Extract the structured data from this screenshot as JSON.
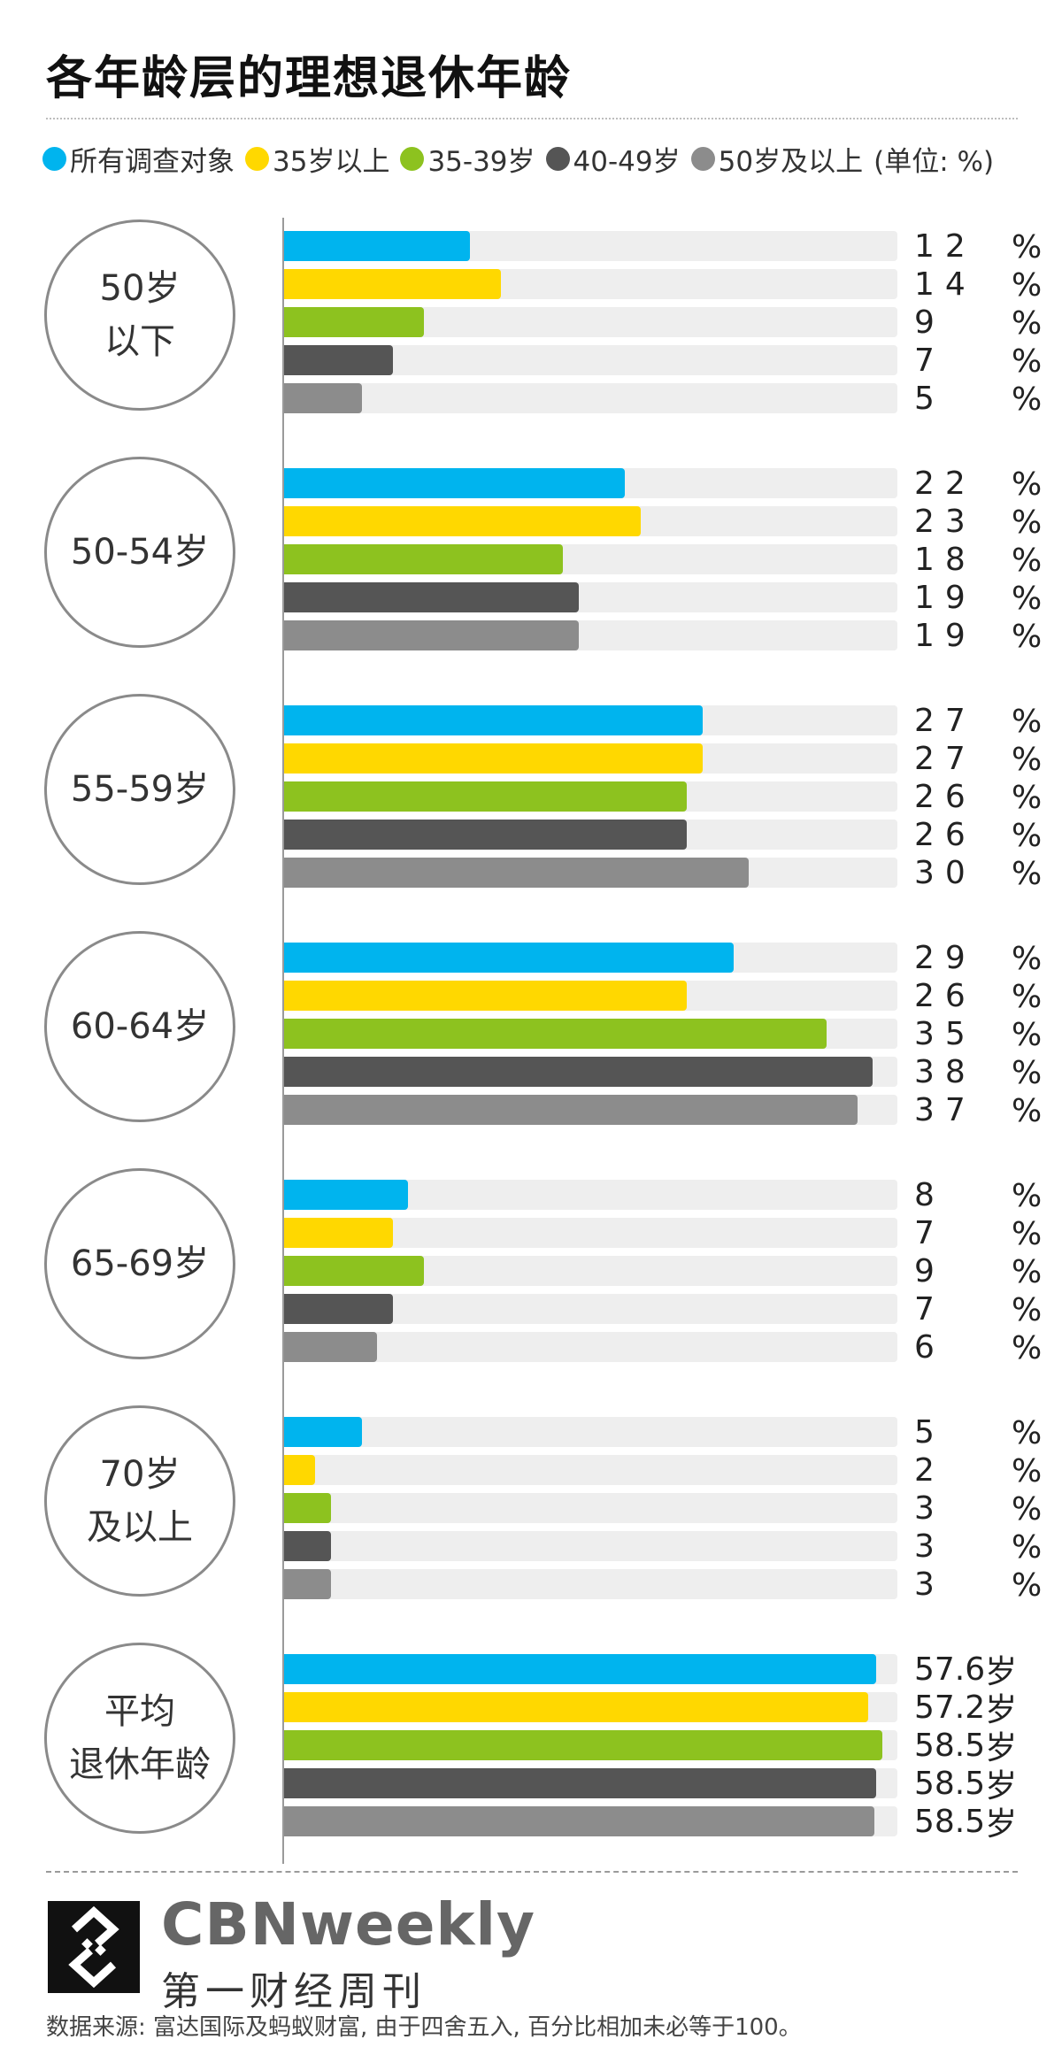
{
  "title": "各年龄层的理想退休年龄",
  "legend": {
    "items": [
      {
        "label": "所有调查对象",
        "color": "#00b4ee"
      },
      {
        "label": "35岁以上",
        "color": "#ffd800"
      },
      {
        "label": "35-39岁",
        "color": "#8dc21f"
      },
      {
        "label": "40-49岁",
        "color": "#555555"
      },
      {
        "label": "50岁及以上",
        "color": "#8c8c8c"
      }
    ],
    "unit": "(单位: %)"
  },
  "chart_data": {
    "type": "bar",
    "orientation": "horizontal",
    "max_value": 38,
    "series": [
      {
        "name": "所有调查对象",
        "color": "#00b4ee"
      },
      {
        "name": "35岁以上",
        "color": "#ffd800"
      },
      {
        "name": "35-39岁",
        "color": "#8dc21f"
      },
      {
        "name": "40-49岁",
        "color": "#555555"
      },
      {
        "name": "50岁及以上",
        "color": "#8c8c8c"
      }
    ],
    "groups": [
      {
        "label": "50岁\n以下",
        "unit": "%",
        "values": [
          12,
          14,
          9,
          7,
          5
        ]
      },
      {
        "label": "50-54岁",
        "unit": "%",
        "values": [
          22,
          23,
          18,
          19,
          19
        ]
      },
      {
        "label": "55-59岁",
        "unit": "%",
        "values": [
          27,
          27,
          26,
          26,
          30
        ]
      },
      {
        "label": "60-64岁",
        "unit": "%",
        "values": [
          29,
          26,
          35,
          38,
          37
        ]
      },
      {
        "label": "65-69岁",
        "unit": "%",
        "values": [
          8,
          7,
          9,
          7,
          6
        ]
      },
      {
        "label": "70岁\n及以上",
        "unit": "%",
        "values": [
          5,
          2,
          3,
          3,
          3
        ]
      },
      {
        "label": "平均\n退休年龄",
        "unit": "岁",
        "values": [
          57.6,
          57.2,
          58.5,
          58.5,
          58.5
        ],
        "bar_fraction": [
          0.965,
          0.953,
          0.975,
          0.965,
          0.963
        ]
      }
    ]
  },
  "footer": {
    "logo_en": "CBNweekly",
    "logo_zh": "第一财经周刊",
    "source": "数据来源: 富达国际及蚂蚁财富, 由于四舍五入, 百分比相加未必等于100。"
  }
}
